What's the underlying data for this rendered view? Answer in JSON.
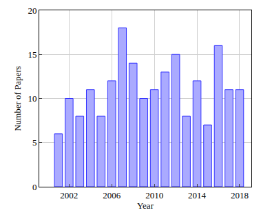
{
  "chart_data": {
    "type": "bar",
    "x": [
      2001,
      2002,
      2003,
      2004,
      2005,
      2006,
      2007,
      2008,
      2009,
      2010,
      2011,
      2012,
      2013,
      2014,
      2015,
      2016,
      2017,
      2018
    ],
    "values": [
      6,
      10,
      8,
      11,
      8,
      12,
      18,
      14,
      10,
      11,
      13,
      15,
      8,
      12,
      7,
      16,
      11,
      11
    ],
    "color": "#aaaaff",
    "x_label": "Year",
    "y_label": "Number of Papers",
    "xlim": [
      1999.2,
      2019.1
    ],
    "xticks": [
      2002,
      2006,
      2010,
      2014,
      2018
    ],
    "ylim": [
      0,
      20
    ],
    "yticks": [
      0,
      5,
      10,
      15,
      20
    ],
    "grid": true
  }
}
